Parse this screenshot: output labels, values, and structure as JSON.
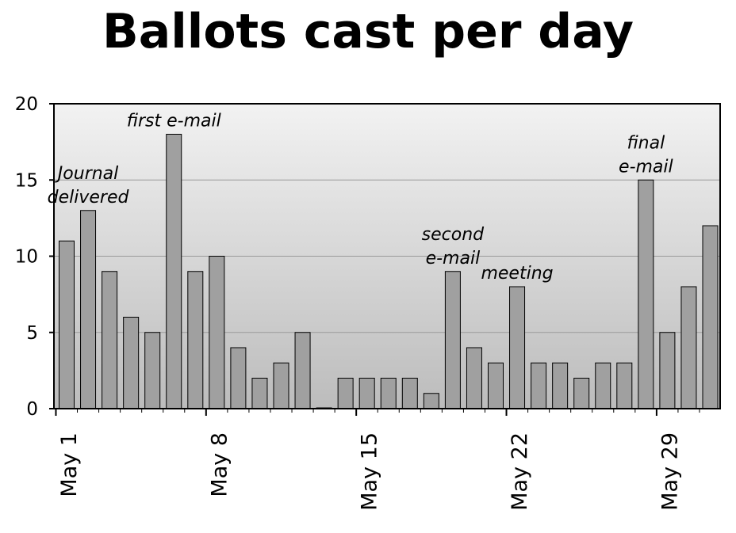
{
  "chart_data": {
    "type": "bar",
    "title": "Ballots cast per day",
    "xlabel": "",
    "ylabel": "",
    "ylim": [
      0,
      20
    ],
    "yticks": [
      0,
      5,
      10,
      15,
      20
    ],
    "categories": [
      1,
      2,
      3,
      4,
      5,
      6,
      7,
      8,
      9,
      10,
      11,
      12,
      13,
      14,
      15,
      16,
      17,
      18,
      19,
      20,
      21,
      22,
      23,
      24,
      25,
      26,
      27,
      28,
      29,
      30,
      31
    ],
    "values": [
      11,
      13,
      9,
      6,
      5,
      18,
      9,
      10,
      4,
      2,
      3,
      5,
      0,
      2,
      2,
      2,
      2,
      1,
      9,
      4,
      3,
      8,
      3,
      3,
      2,
      3,
      3,
      15,
      5,
      8,
      12
    ],
    "xtick_labels": [
      {
        "day": 1,
        "label": "May 1"
      },
      {
        "day": 8,
        "label": "May 8"
      },
      {
        "day": 15,
        "label": "May 15"
      },
      {
        "day": 22,
        "label": "May 22"
      },
      {
        "day": 29,
        "label": "May 29"
      }
    ],
    "annotations": [
      {
        "lines": [
          "Journal",
          "delivered"
        ],
        "day": 2
      },
      {
        "lines": [
          "first e-mail"
        ],
        "day": 6
      },
      {
        "lines": [
          "second",
          "e-mail"
        ],
        "day": 19
      },
      {
        "lines": [
          "meeting"
        ],
        "day": 22
      },
      {
        "lines": [
          "final",
          "e-mail"
        ],
        "day": 28
      }
    ],
    "grid": true,
    "bar_color": "#a0a0a0",
    "background_gradient": [
      "#f2f2f2",
      "#bcbcbc"
    ]
  }
}
